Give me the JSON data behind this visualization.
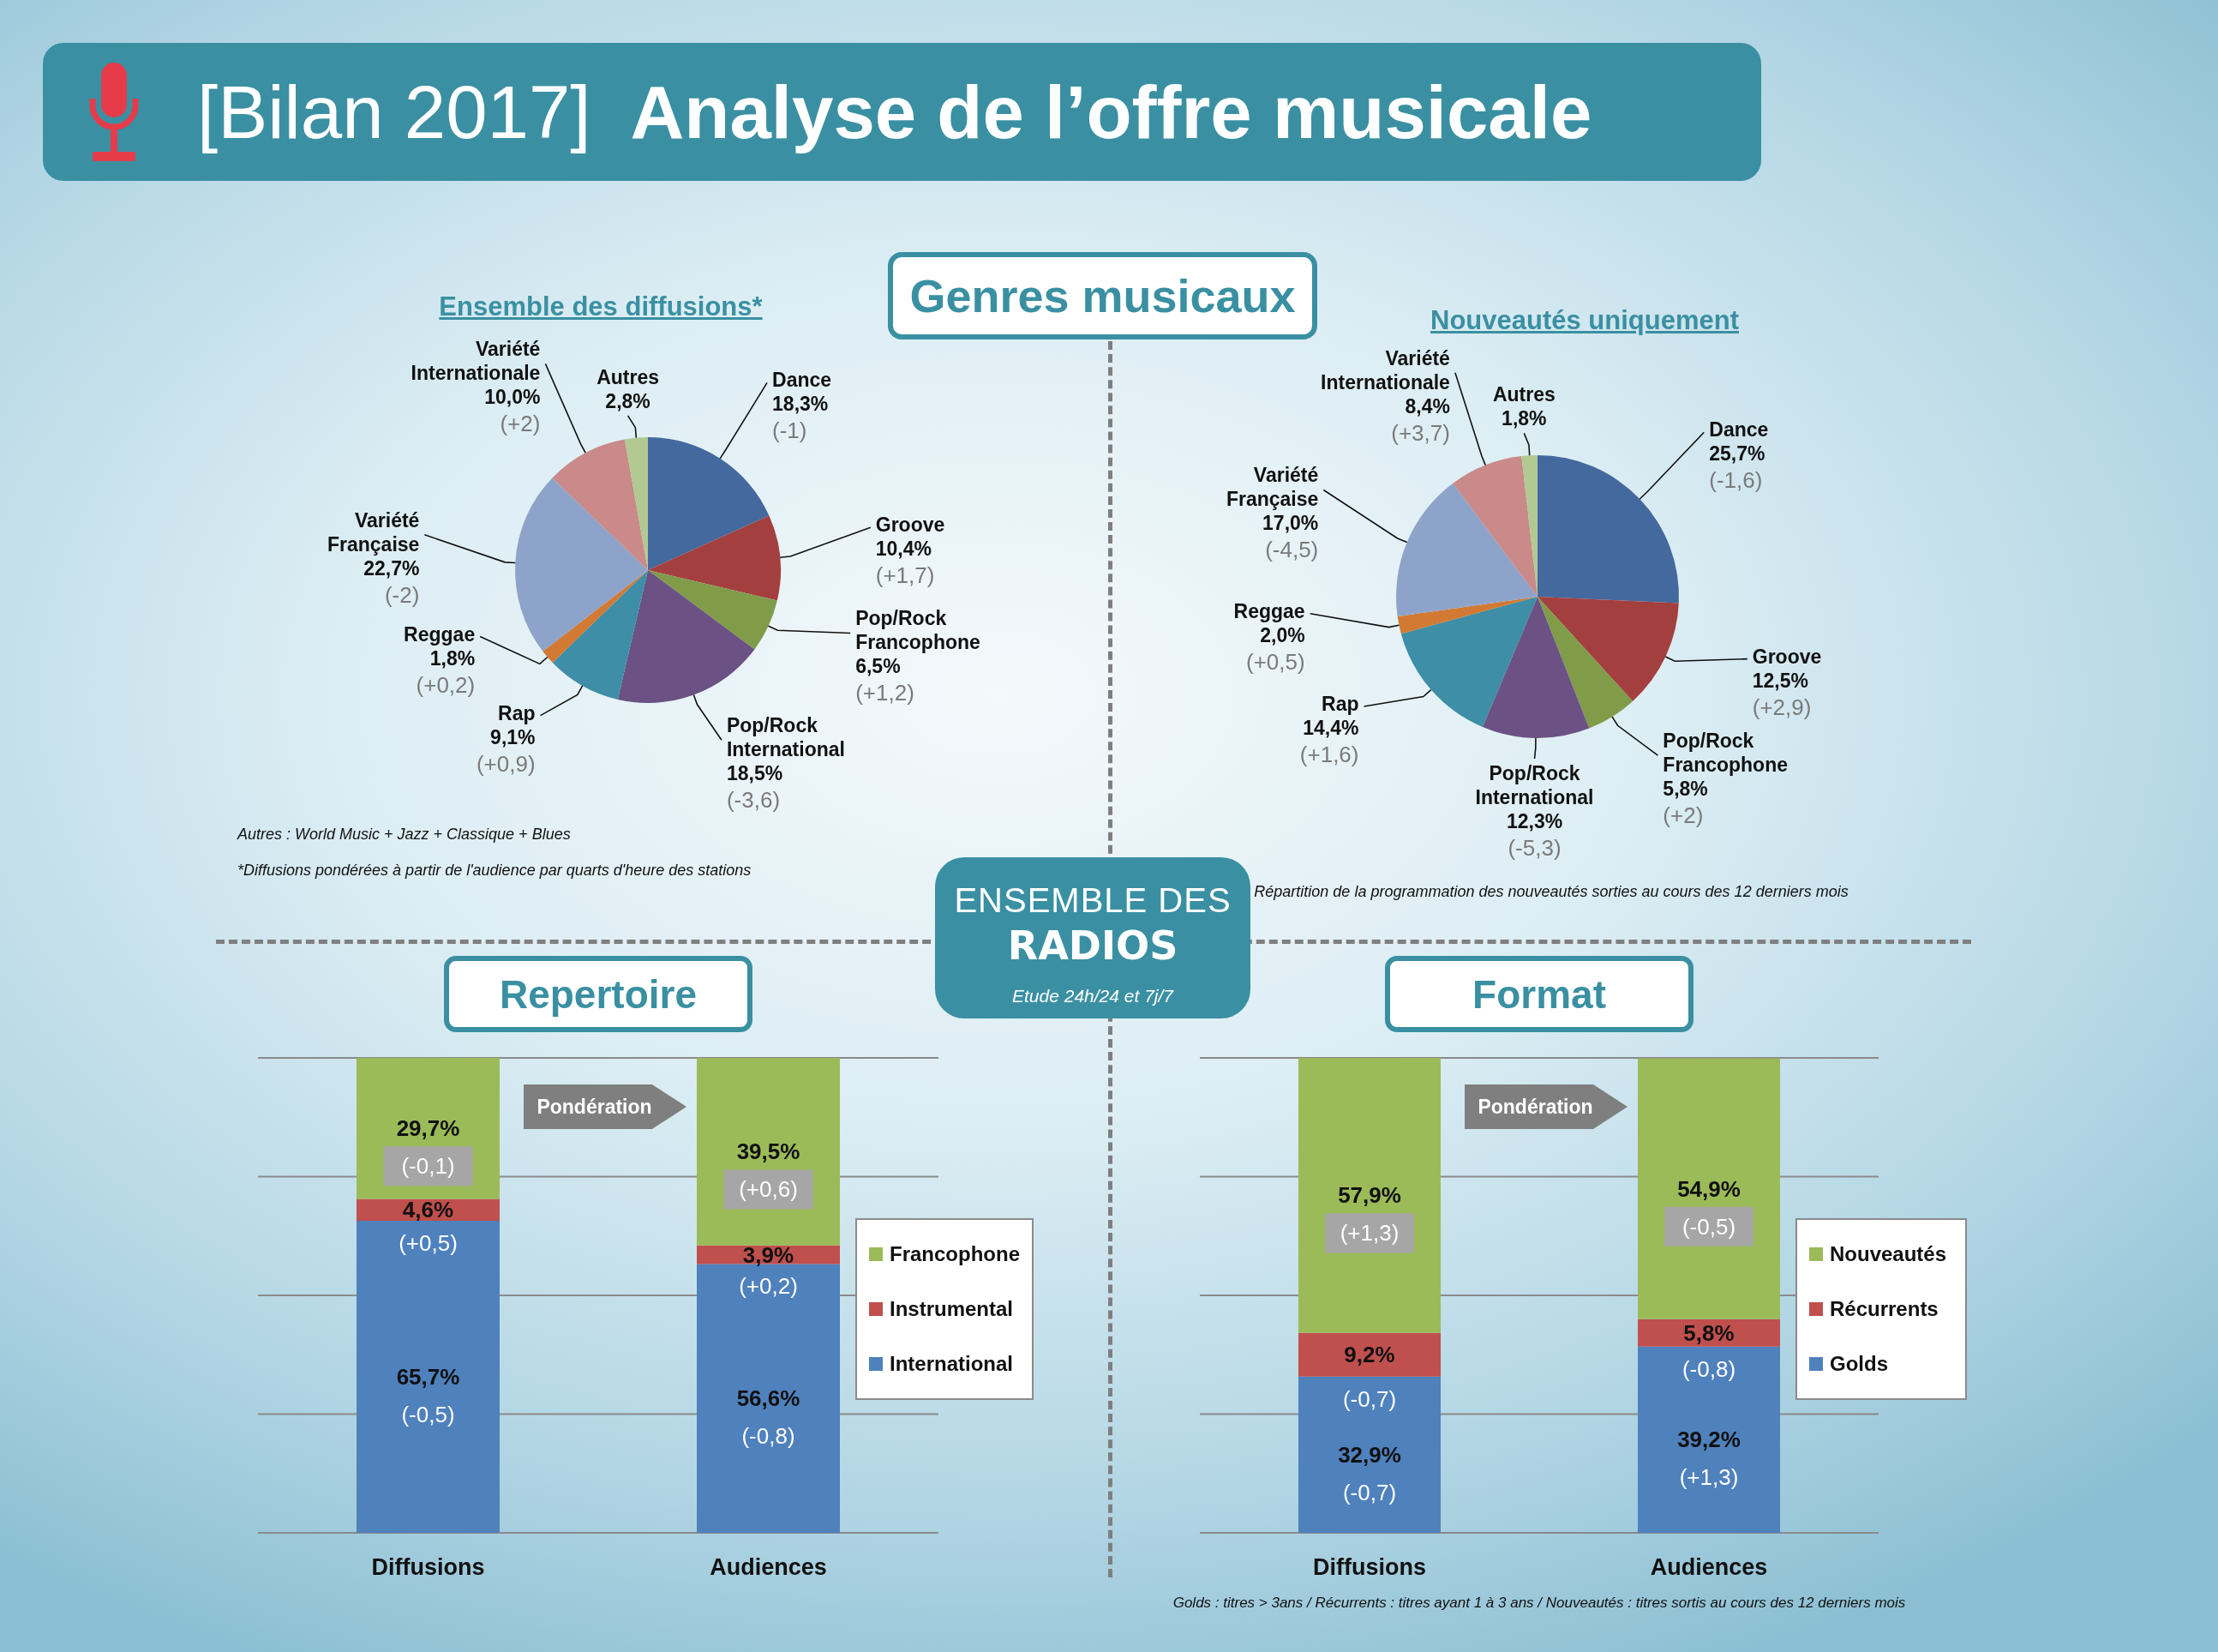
{
  "chart_data": [
    {
      "type": "other",
      "title": "[Bilan 2017]",
      "subtitle": "Analyse de l’offre musicale",
      "annotations": [
        "Genres musicaux",
        "ENSEMBLE DES",
        "RADIOS",
        "Etude 24h/24 et 7j/7"
      ]
    },
    {
      "type": "pie",
      "title": "Ensemble des diffusions*",
      "categories": [
        "Dance",
        "Groove",
        "Pop/Rock Francophone",
        "Pop/Rock International",
        "Rap",
        "Reggae",
        "Variété Française",
        "Variété Internationale",
        "Autres"
      ],
      "values": [
        18.3,
        10.4,
        6.5,
        18.5,
        9.1,
        1.8,
        22.7,
        10.0,
        2.8
      ],
      "value_labels": [
        "18,3%",
        "10,4%",
        "6,5%",
        "18,5%",
        "9,1%",
        "1,8%",
        "22,7%",
        "10,0%",
        "2,8%"
      ],
      "colors": [
        "#44699e",
        "#a3403f",
        "#809c49",
        "#6c5185",
        "#3d8ea6",
        "#d27a33",
        "#8ea3c9",
        "#c98a89",
        "#b2c992"
      ],
      "annotations": [
        {
          "text": "(-1)",
          "x": "Dance"
        },
        {
          "text": "(+1,7)",
          "x": "Groove"
        },
        {
          "text": "(+1,2)",
          "x": "Pop/Rock Francophone"
        },
        {
          "text": "(-3,6)",
          "x": "Pop/Rock International"
        },
        {
          "text": "(+0,9)",
          "x": "Rap"
        },
        {
          "text": "(+0,2)",
          "x": "Reggae"
        },
        {
          "text": "(-2)",
          "x": "Variété Française"
        },
        {
          "text": "(+2)",
          "x": "Variété Internationale"
        },
        "Autres : World Music + Jazz + Classique + Blues",
        "*Diffusions pondérées à partir de l'audience par quarts d'heure des stations"
      ]
    },
    {
      "type": "pie",
      "title": "Nouveautés uniquement",
      "categories": [
        "Dance",
        "Groove",
        "Pop/Rock Francophone",
        "Pop/Rock International",
        "Rap",
        "Reggae",
        "Variété Française",
        "Variété Internationale",
        "Autres"
      ],
      "values": [
        25.7,
        12.5,
        5.8,
        12.3,
        14.4,
        2.0,
        17.0,
        8.4,
        1.8
      ],
      "value_labels": [
        "25,7%",
        "12,5%",
        "5,8%",
        "12,3%",
        "14,4%",
        "2,0%",
        "17,0%",
        "8,4%",
        "1,8%"
      ],
      "colors": [
        "#44699e",
        "#a3403f",
        "#809c49",
        "#6c5185",
        "#3d8ea6",
        "#d27a33",
        "#8ea3c9",
        "#c98a89",
        "#b2c992"
      ],
      "annotations": [
        {
          "text": "(-1,6)",
          "x": "Dance"
        },
        {
          "text": "(+2,9)",
          "x": "Groove"
        },
        {
          "text": "(+2)",
          "x": "Pop/Rock Francophone"
        },
        {
          "text": "(-5,3)",
          "x": "Pop/Rock International"
        },
        {
          "text": "(+1,6)",
          "x": "Rap"
        },
        {
          "text": "(+0,5)",
          "x": "Reggae"
        },
        {
          "text": "(-4,5)",
          "x": "Variété Française"
        },
        {
          "text": "(+3,7)",
          "x": "Variété Internationale"
        },
        "Répartition de la programmation des nouveautés sorties au cours des 12 derniers mois"
      ]
    },
    {
      "type": "bar",
      "title": "Repertoire",
      "stacked": true,
      "categories": [
        "Diffusions",
        "Audiences"
      ],
      "series": [
        {
          "name": "International",
          "color": "#4f81bd",
          "values": [
            65.7,
            56.6
          ],
          "value_labels": [
            "65,7%",
            "56,6%"
          ]
        },
        {
          "name": "Instrumental",
          "color": "#c0504d",
          "values": [
            4.6,
            3.9
          ],
          "value_labels": [
            "4,6%",
            "3,9%"
          ]
        },
        {
          "name": "Francophone",
          "color": "#9bbb59",
          "values": [
            29.7,
            39.5
          ],
          "value_labels": [
            "29,7%",
            "39,5%"
          ]
        }
      ],
      "ylim": [
        0,
        100
      ],
      "grid": "y",
      "legend": "right",
      "tick_labels": "x",
      "annotations": [
        "Pondération",
        "(-0,5)",
        "(+0,5)",
        "(-0,1)",
        "(-0,8)",
        "(+0,2)",
        "(+0,6)"
      ]
    },
    {
      "type": "bar",
      "title": "Format",
      "stacked": true,
      "categories": [
        "Diffusions",
        "Audiences"
      ],
      "series": [
        {
          "name": "Golds",
          "color": "#4f81bd",
          "values": [
            32.9,
            39.2
          ],
          "value_labels": [
            "32,9%",
            "39,2%"
          ]
        },
        {
          "name": "Récurrents",
          "color": "#c0504d",
          "values": [
            9.2,
            5.8
          ],
          "value_labels": [
            "9,2%",
            "5,8%"
          ]
        },
        {
          "name": "Nouveautés",
          "color": "#9bbb59",
          "values": [
            57.9,
            54.9
          ],
          "value_labels": [
            "57,9%",
            "54,9%"
          ]
        }
      ],
      "ylim": [
        0,
        100
      ],
      "grid": "y",
      "legend": "right",
      "tick_labels": "x",
      "annotations": [
        "Pondération",
        "(-0,7)",
        "(-0,7)",
        "(+1,3)",
        "(+1,3)",
        "(-0,8)",
        "(-0,5)",
        "Golds : titres > 3ans / Récurrents : titres ayant 1 à 3 ans / Nouveautés : titres sortis au cours des 12 derniers mois"
      ]
    }
  ]
}
